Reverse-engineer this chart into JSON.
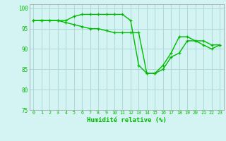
{
  "xlabel": "Humidité relative (%)",
  "line1": [
    97,
    97,
    97,
    97,
    97,
    98,
    98.5,
    98.5,
    98.5,
    98.5,
    98.5,
    98.5,
    97,
    86,
    84,
    84,
    85,
    88,
    89,
    92,
    92,
    91,
    90,
    91
  ],
  "line2": [
    97,
    97,
    97,
    97,
    96.5,
    96,
    95.5,
    95,
    95,
    94.5,
    94,
    94,
    94,
    94,
    84,
    84,
    86,
    89,
    93,
    93,
    92,
    92,
    91,
    91
  ],
  "hours": [
    0,
    1,
    2,
    3,
    4,
    5,
    6,
    7,
    8,
    9,
    10,
    11,
    12,
    13,
    14,
    15,
    16,
    17,
    18,
    19,
    20,
    21,
    22,
    23
  ],
  "ylim": [
    75,
    101
  ],
  "yticks": [
    75,
    80,
    85,
    90,
    95,
    100
  ],
  "line_color": "#00bb00",
  "bg_color": "#d4f4f4",
  "grid_color": "#b0d8d8",
  "marker": "+",
  "markersize": 3.5,
  "linewidth": 1.0
}
